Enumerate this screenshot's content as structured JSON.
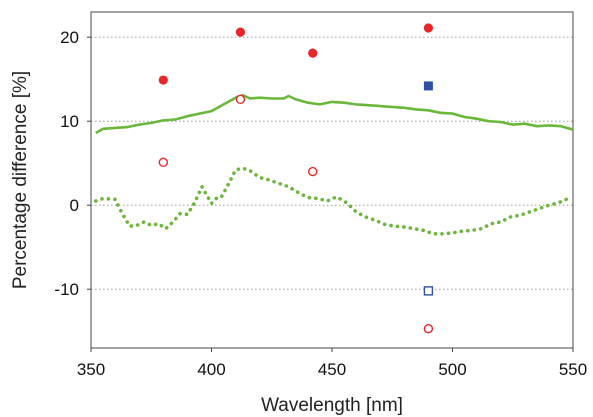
{
  "chart_data": {
    "type": "scatter",
    "title": "",
    "xlabel": "Wavelength  [nm]",
    "ylabel": "Percentage difference [%]",
    "xlim": [
      350,
      550
    ],
    "ylim": [
      -17,
      23
    ],
    "xticks": [
      350,
      400,
      450,
      500,
      550
    ],
    "yticks": [
      -10,
      0,
      10,
      20
    ],
    "xtick_labels": [
      "350",
      "400",
      "450",
      "500",
      "550"
    ],
    "ytick_labels": [
      "-10",
      "0",
      "10",
      "20"
    ],
    "grid": "horizontal dotted",
    "legend": "none",
    "series": [
      {
        "style": "line-solid",
        "color": "#6ab73b",
        "x": [
          352,
          355,
          360,
          365,
          370,
          375,
          380,
          385,
          390,
          395,
          400,
          405,
          410,
          413,
          416,
          420,
          425,
          430,
          432,
          435,
          440,
          445,
          450,
          455,
          460,
          465,
          470,
          475,
          480,
          485,
          490,
          495,
          500,
          505,
          510,
          515,
          520,
          525,
          530,
          535,
          540,
          545,
          550
        ],
        "y": [
          8.6,
          9.1,
          9.2,
          9.3,
          9.6,
          9.8,
          10.1,
          10.2,
          10.6,
          10.9,
          11.2,
          12.0,
          12.8,
          13.1,
          12.7,
          12.8,
          12.7,
          12.7,
          13.0,
          12.6,
          12.2,
          12.0,
          12.3,
          12.2,
          12.0,
          11.9,
          11.8,
          11.7,
          11.6,
          11.4,
          11.3,
          11.0,
          10.9,
          10.5,
          10.3,
          10.0,
          9.9,
          9.6,
          9.7,
          9.4,
          9.5,
          9.4,
          9.0
        ]
      },
      {
        "style": "line-dotted",
        "color": "#6ab73b",
        "x": [
          352,
          355,
          360,
          363,
          366,
          369,
          372,
          375,
          378,
          381,
          384,
          387,
          390,
          393,
          396,
          398,
          400,
          402,
          404,
          407,
          410,
          413,
          416,
          420,
          424,
          428,
          432,
          436,
          440,
          444,
          448,
          452,
          456,
          460,
          464,
          468,
          472,
          476,
          480,
          484,
          488,
          492,
          496,
          500,
          504,
          508,
          512,
          516,
          520,
          524,
          528,
          532,
          536,
          540,
          544,
          548
        ],
        "y": [
          0.5,
          0.8,
          0.7,
          -1.0,
          -2.5,
          -2.4,
          -2.0,
          -2.4,
          -2.2,
          -2.8,
          -2.0,
          -1.0,
          -1.1,
          0.3,
          2.2,
          1.2,
          0.2,
          0.8,
          0.9,
          2.5,
          4.2,
          4.4,
          4.1,
          3.3,
          3.0,
          2.6,
          2.2,
          1.5,
          0.9,
          0.8,
          0.5,
          1.0,
          0.3,
          -0.8,
          -1.4,
          -1.8,
          -2.3,
          -2.5,
          -2.6,
          -2.8,
          -3.0,
          -3.4,
          -3.4,
          -3.3,
          -3.1,
          -3.0,
          -2.8,
          -2.2,
          -2.0,
          -1.4,
          -1.2,
          -0.8,
          -0.4,
          0.0,
          0.3,
          0.8
        ]
      },
      {
        "style": "marker-filled-circle",
        "color": "#e8262a",
        "x": [
          380,
          412,
          442,
          490
        ],
        "y": [
          14.9,
          20.6,
          18.1,
          21.1
        ]
      },
      {
        "style": "marker-open-circle",
        "color": "#e8262a",
        "x": [
          380,
          412,
          442,
          490
        ],
        "y": [
          5.1,
          12.6,
          4.0,
          -14.7
        ]
      },
      {
        "style": "marker-filled-square",
        "color": "#2f50a1",
        "x": [
          490
        ],
        "y": [
          14.2
        ]
      },
      {
        "style": "marker-open-square",
        "color": "#2f50a1",
        "x": [
          490
        ],
        "y": [
          -10.2
        ]
      }
    ]
  }
}
